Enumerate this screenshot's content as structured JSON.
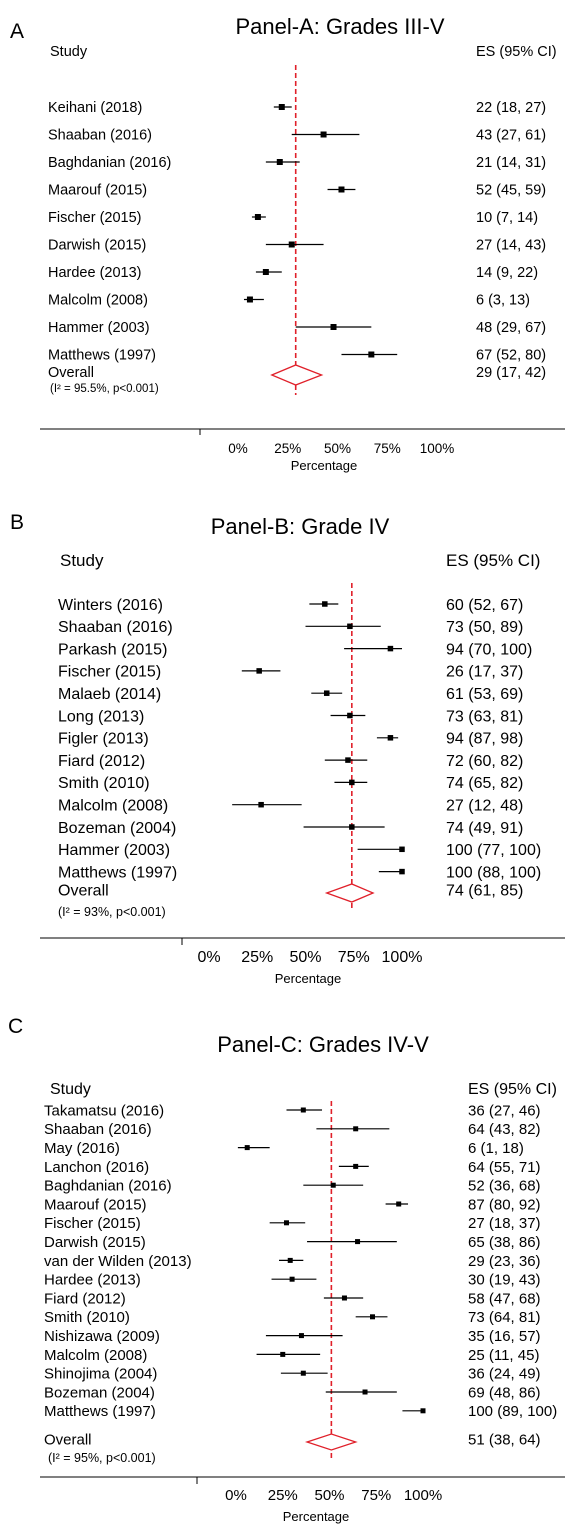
{
  "panels": [
    {
      "letter": "A",
      "title": "Panel-A: Grades III-V",
      "col_study": "Study",
      "col_es": "ES (95% CI)",
      "overall_stats": "(I² = 95.5%, p<0.001)",
      "xlabel": "Percentage"
    },
    {
      "letter": "B",
      "title": "Panel-B: Grade IV",
      "col_study": "Study",
      "col_es": "ES (95% CI)",
      "overall_stats": "(I² = 93%, p<0.001)",
      "xlabel": "Percentage"
    },
    {
      "letter": "C",
      "title": "Panel-C: Grades IV-V",
      "col_study": "Study",
      "col_es": "ES (95% CI)",
      "overall_stats": "(I² = 95%, p<0.001)",
      "xlabel": "Percentage"
    }
  ],
  "colors": {
    "reference_line": "#e0202a",
    "diamond": "#e0202a",
    "marker": "#000000"
  },
  "chart_data": [
    {
      "type": "forest",
      "title": "Panel-A: Grades III-V",
      "xlabel": "Percentage",
      "xlim": [
        0,
        100
      ],
      "xticks": [
        "0%",
        "25%",
        "50%",
        "75%",
        "100%"
      ],
      "reference_line": 29,
      "studies": [
        {
          "label": "Keihani (2018)",
          "es": 22,
          "lo": 18,
          "hi": 27,
          "text": "22 (18, 27)"
        },
        {
          "label": "Shaaban (2016)",
          "es": 43,
          "lo": 27,
          "hi": 61,
          "text": "43 (27, 61)"
        },
        {
          "label": "Baghdanian (2016)",
          "es": 21,
          "lo": 14,
          "hi": 31,
          "text": "21 (14, 31)"
        },
        {
          "label": "Maarouf  (2015)",
          "es": 52,
          "lo": 45,
          "hi": 59,
          "text": "52 (45, 59)"
        },
        {
          "label": "Fischer (2015)",
          "es": 10,
          "lo": 7,
          "hi": 14,
          "text": "10 (7, 14)"
        },
        {
          "label": "Darwish (2015)",
          "es": 27,
          "lo": 14,
          "hi": 43,
          "text": "27 (14, 43)"
        },
        {
          "label": "Hardee (2013)",
          "es": 14,
          "lo": 9,
          "hi": 22,
          "text": "14 (9, 22)"
        },
        {
          "label": "Malcolm (2008)",
          "es": 6,
          "lo": 3,
          "hi": 13,
          "text": "6 (3, 13)"
        },
        {
          "label": "Hammer (2003)",
          "es": 48,
          "lo": 29,
          "hi": 67,
          "text": "48 (29, 67)"
        },
        {
          "label": "Matthews (1997)",
          "es": 67,
          "lo": 52,
          "hi": 80,
          "text": "67 (52, 80)"
        }
      ],
      "overall": {
        "label": "Overall",
        "es": 29,
        "lo": 17,
        "hi": 42,
        "text": "29 (17, 42)"
      }
    },
    {
      "type": "forest",
      "title": "Panel-B: Grade IV",
      "xlabel": "Percentage",
      "xlim": [
        0,
        100
      ],
      "xticks": [
        "0%",
        "25%",
        "50%",
        "75%",
        "100%"
      ],
      "reference_line": 74,
      "studies": [
        {
          "label": "Winters (2016)",
          "es": 60,
          "lo": 52,
          "hi": 67,
          "text": "60 (52, 67)"
        },
        {
          "label": "Shaaban (2016)",
          "es": 73,
          "lo": 50,
          "hi": 89,
          "text": "73 (50, 89)"
        },
        {
          "label": "Parkash (2015)",
          "es": 94,
          "lo": 70,
          "hi": 100,
          "text": "94 (70, 100)"
        },
        {
          "label": "Fischer (2015)",
          "es": 26,
          "lo": 17,
          "hi": 37,
          "text": "26 (17, 37)"
        },
        {
          "label": "Malaeb (2014)",
          "es": 61,
          "lo": 53,
          "hi": 69,
          "text": "61 (53, 69)"
        },
        {
          "label": "Long (2013)",
          "es": 73,
          "lo": 63,
          "hi": 81,
          "text": "73 (63, 81)"
        },
        {
          "label": "Figler (2013)",
          "es": 94,
          "lo": 87,
          "hi": 98,
          "text": "94 (87, 98)"
        },
        {
          "label": "Fiard (2012)",
          "es": 72,
          "lo": 60,
          "hi": 82,
          "text": "72 (60, 82)"
        },
        {
          "label": "Smith (2010)",
          "es": 74,
          "lo": 65,
          "hi": 82,
          "text": "74 (65, 82)"
        },
        {
          "label": "Malcolm (2008)",
          "es": 27,
          "lo": 12,
          "hi": 48,
          "text": "27 (12, 48)"
        },
        {
          "label": "Bozeman (2004)",
          "es": 74,
          "lo": 49,
          "hi": 91,
          "text": "74 (49, 91)"
        },
        {
          "label": "Hammer (2003)",
          "es": 100,
          "lo": 77,
          "hi": 100,
          "text": "100 (77, 100)"
        },
        {
          "label": "Matthews (1997)",
          "es": 100,
          "lo": 88,
          "hi": 100,
          "text": "100 (88, 100)"
        }
      ],
      "overall": {
        "label": "Overall",
        "es": 74,
        "lo": 61,
        "hi": 85,
        "text": "74 (61, 85)"
      }
    },
    {
      "type": "forest",
      "title": "Panel-C: Grades IV-V",
      "xlabel": "Percentage",
      "xlim": [
        0,
        100
      ],
      "xticks": [
        "0%",
        "25%",
        "50%",
        "75%",
        "100%"
      ],
      "reference_line": 51,
      "studies": [
        {
          "label": "Takamatsu (2016)",
          "es": 36,
          "lo": 27,
          "hi": 46,
          "text": "36 (27, 46)"
        },
        {
          "label": "Shaaban (2016)",
          "es": 64,
          "lo": 43,
          "hi": 82,
          "text": "64 (43, 82)"
        },
        {
          "label": "May (2016)",
          "es": 6,
          "lo": 1,
          "hi": 18,
          "text": "6 (1, 18)"
        },
        {
          "label": "Lanchon (2016)",
          "es": 64,
          "lo": 55,
          "hi": 71,
          "text": "64 (55, 71)"
        },
        {
          "label": "Baghdanian (2016)",
          "es": 52,
          "lo": 36,
          "hi": 68,
          "text": "52 (36, 68)"
        },
        {
          "label": "Maarouf  (2015)",
          "es": 87,
          "lo": 80,
          "hi": 92,
          "text": "87 (80, 92)"
        },
        {
          "label": "Fischer (2015)",
          "es": 27,
          "lo": 18,
          "hi": 37,
          "text": "27 (18, 37)"
        },
        {
          "label": "Darwish (2015)",
          "es": 65,
          "lo": 38,
          "hi": 86,
          "text": "65 (38, 86)"
        },
        {
          "label": "van der Wilden (2013)",
          "es": 29,
          "lo": 23,
          "hi": 36,
          "text": "29 (23, 36)"
        },
        {
          "label": "Hardee (2013)",
          "es": 30,
          "lo": 19,
          "hi": 43,
          "text": "30 (19, 43)"
        },
        {
          "label": "Fiard (2012)",
          "es": 58,
          "lo": 47,
          "hi": 68,
          "text": "58 (47, 68)"
        },
        {
          "label": "Smith (2010)",
          "es": 73,
          "lo": 64,
          "hi": 81,
          "text": "73 (64, 81)"
        },
        {
          "label": "Nishizawa (2009)",
          "es": 35,
          "lo": 16,
          "hi": 57,
          "text": "35 (16, 57)"
        },
        {
          "label": "Malcolm (2008)",
          "es": 25,
          "lo": 11,
          "hi": 45,
          "text": "25 (11, 45)"
        },
        {
          "label": "Shinojima (2004)",
          "es": 36,
          "lo": 24,
          "hi": 49,
          "text": "36 (24, 49)"
        },
        {
          "label": "Bozeman (2004)",
          "es": 69,
          "lo": 48,
          "hi": 86,
          "text": "69 (48, 86)"
        },
        {
          "label": "Matthews (1997)",
          "es": 100,
          "lo": 89,
          "hi": 100,
          "text": "100 (89, 100)"
        }
      ],
      "overall": {
        "label": "Overall",
        "es": 51,
        "lo": 38,
        "hi": 64,
        "text": "51 (38, 64)"
      }
    }
  ]
}
